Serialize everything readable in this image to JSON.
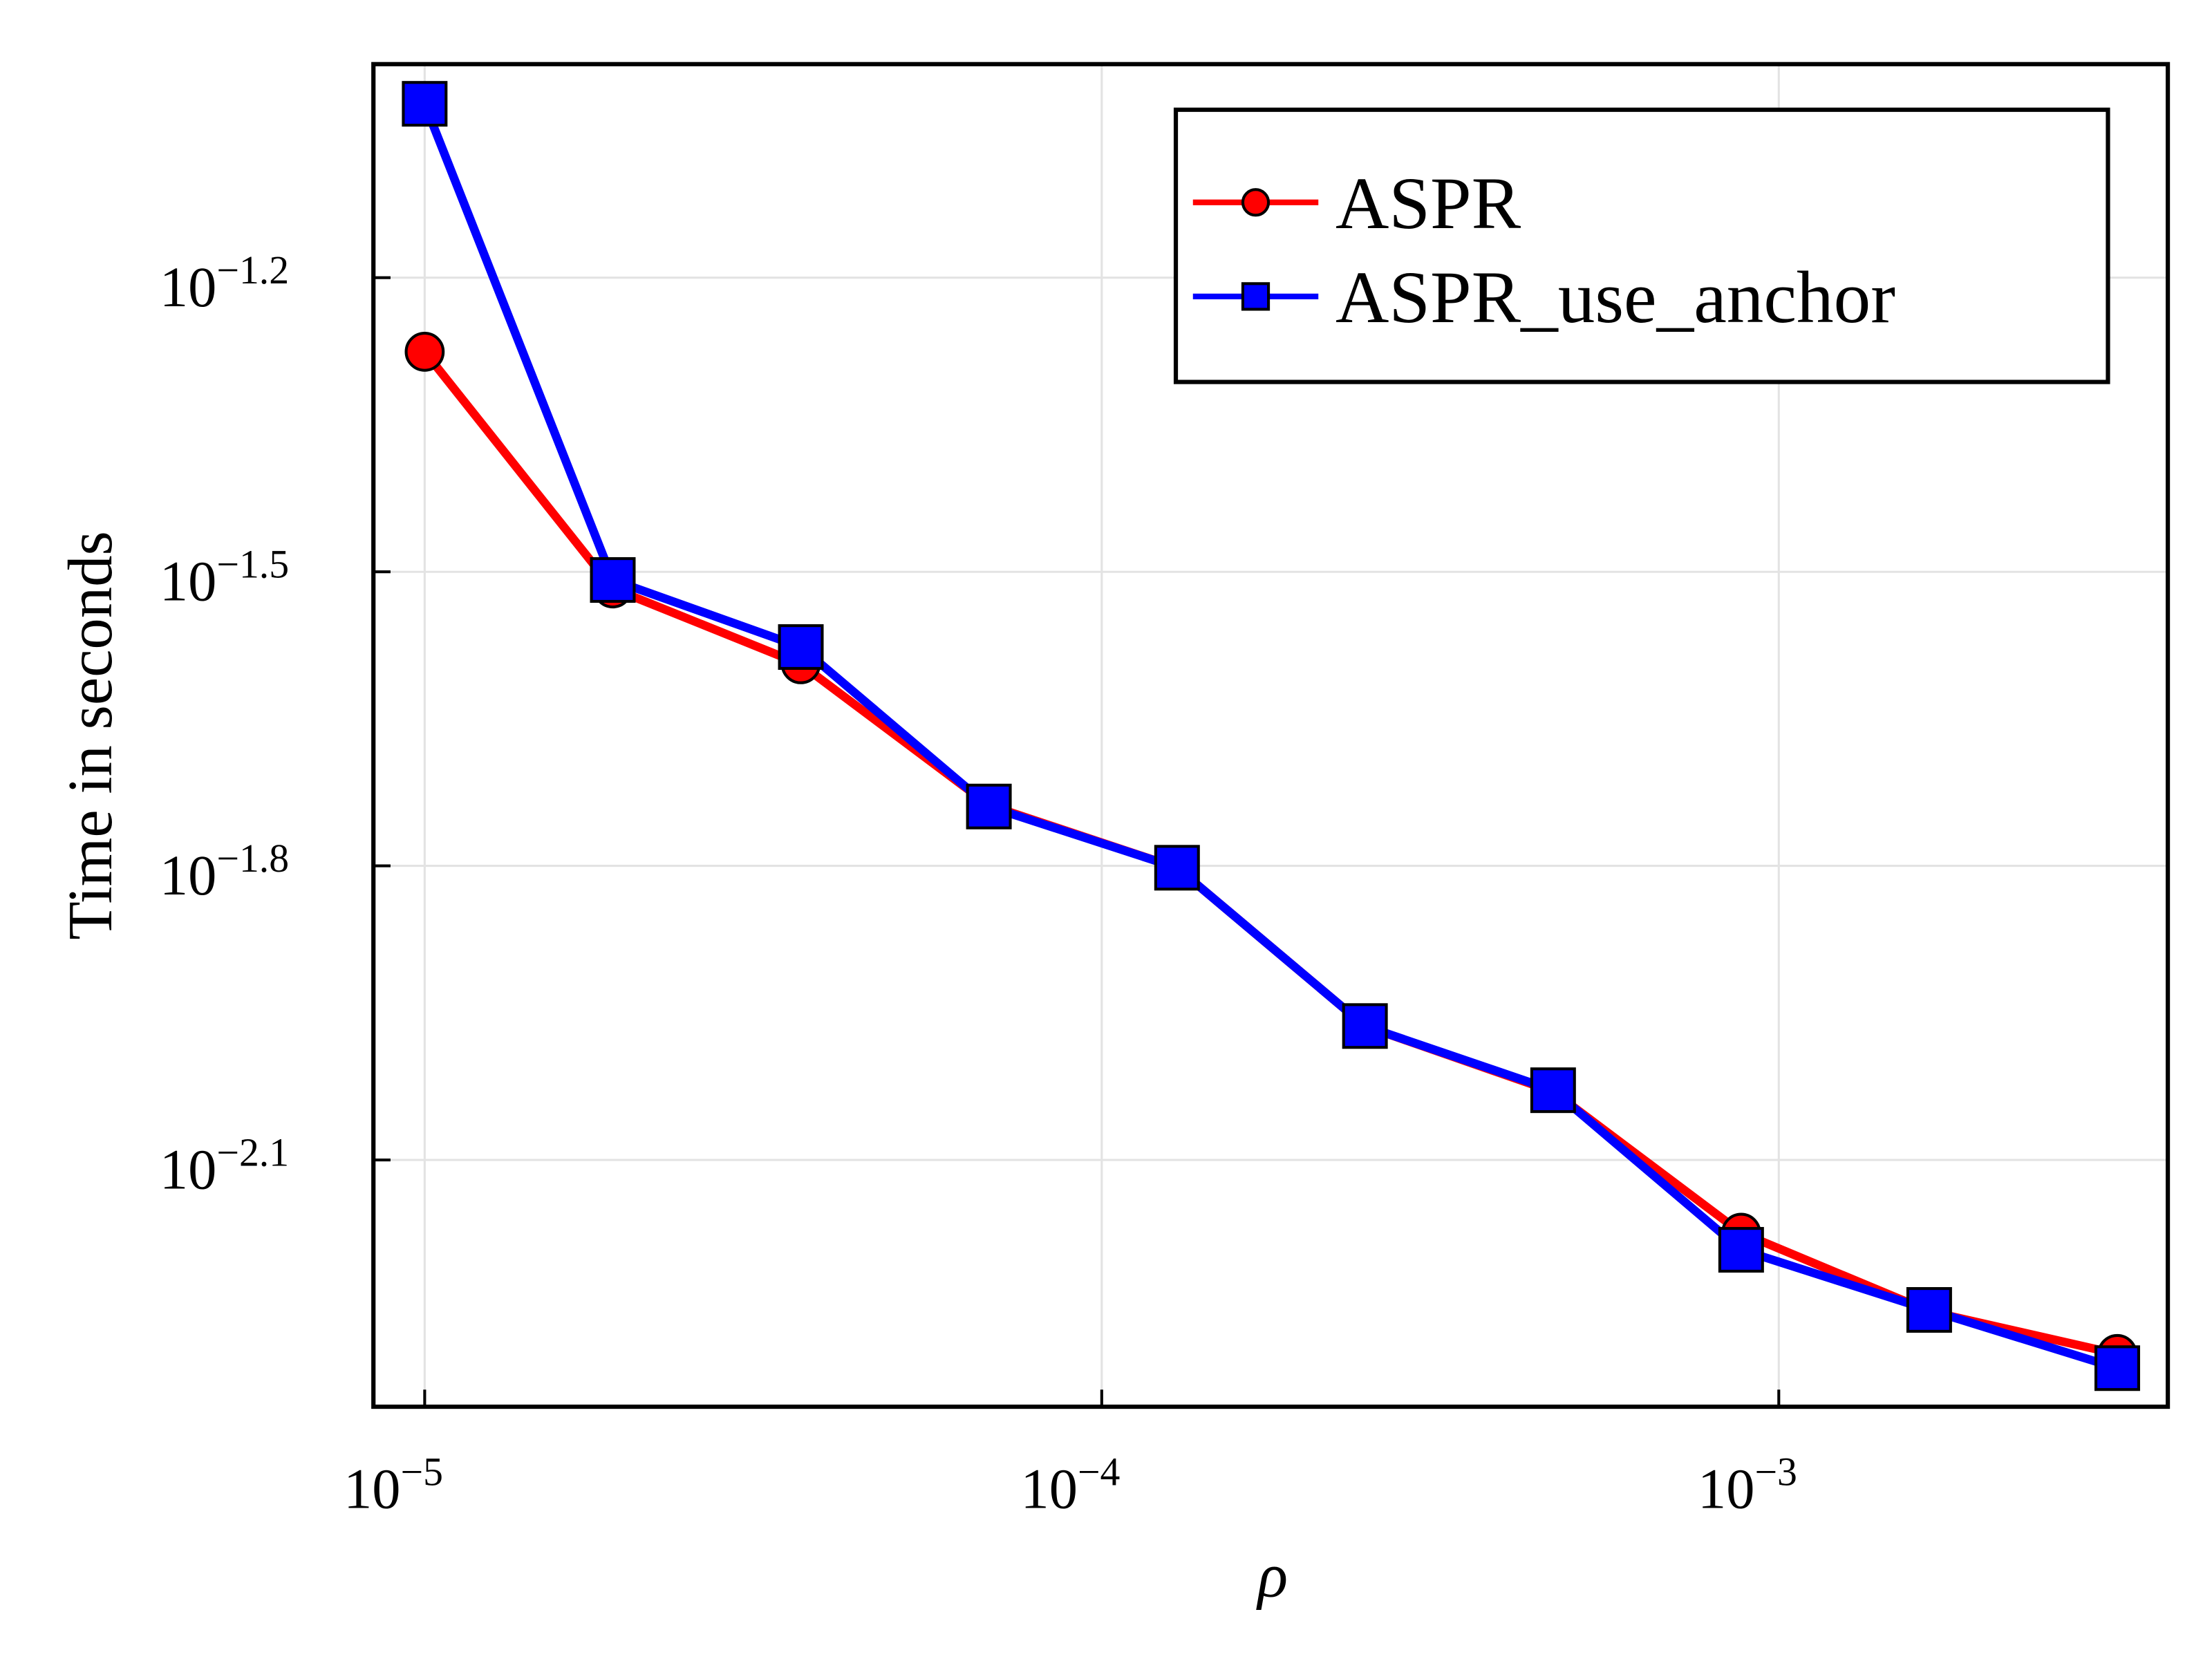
{
  "chart_data": {
    "type": "line",
    "xlabel": "ρ",
    "ylabel": "Time in seconds",
    "x": [
      1e-05,
      1.896e-05,
      3.594e-05,
      6.813e-05,
      0.0001292,
      0.0002448,
      0.0004642,
      0.0008799,
      0.001668,
      0.003162
    ],
    "series": [
      {
        "name": "ASPR",
        "color": "#ff0000",
        "marker": "circle",
        "values": [
          0.05302,
          0.03041,
          0.02545,
          0.01828,
          0.01578,
          0.01088,
          0.009326,
          0.006695,
          0.005567,
          0.005036
        ]
      },
      {
        "name": "ASPR_use_anchor",
        "color": "#0000ff",
        "marker": "square",
        "values": [
          0.09493,
          0.03102,
          0.0265,
          0.01822,
          0.01578,
          0.01088,
          0.009357,
          0.006432,
          0.005585,
          0.004871
        ]
      }
    ],
    "xscale": "log",
    "yscale": "log",
    "xlim": [
      8.4e-06,
      0.003755
    ],
    "ylim": [
      0.004449,
      0.1042
    ],
    "xticks": [
      {
        "value": 1e-05,
        "label": "10−5"
      },
      {
        "value": 0.0001,
        "label": "10−4"
      },
      {
        "value": 0.001,
        "label": "10−3"
      }
    ],
    "yticks": [
      {
        "value": 0.0631,
        "label": "10−1.2"
      },
      {
        "value": 0.03162,
        "label": "10−1.5"
      },
      {
        "value": 0.01585,
        "label": "10−1.8"
      },
      {
        "value": 0.007943,
        "label": "10−2.1"
      }
    ],
    "grid": true,
    "legend": "upper right"
  }
}
